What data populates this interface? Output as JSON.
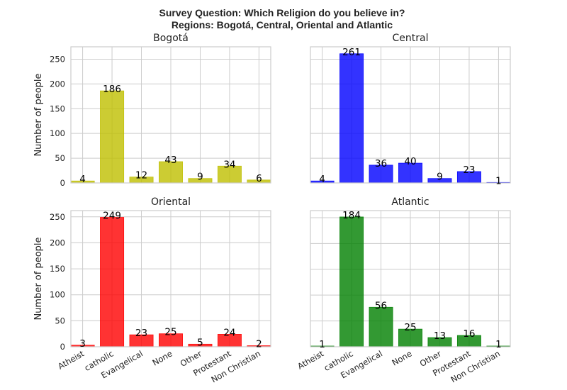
{
  "figure": {
    "title_line1": "Survey Question: Which Religion do you believe in?",
    "title_line2": "Regions: Bogotá, Central, Oriental and Atlantic"
  },
  "chart_data": [
    {
      "type": "bar",
      "title": "Bogotá",
      "ylabel": "Number of people",
      "categories": [
        "Atheist",
        "catholic",
        "Evangelical",
        "None",
        "Other",
        "Protestant",
        "Non Christian"
      ],
      "values": [
        4,
        186,
        12,
        43,
        9,
        34,
        6
      ],
      "data_labels": [
        "4",
        "186",
        "12",
        "43",
        "9",
        "34",
        "6"
      ],
      "color": "#bfbf00",
      "ylim": [
        0,
        275
      ],
      "yticks": [
        0,
        50,
        100,
        150,
        200,
        250
      ],
      "show_yticks": true,
      "show_xticks": false
    },
    {
      "type": "bar",
      "title": "Central",
      "ylabel": "",
      "categories": [
        "Atheist",
        "catholic",
        "Evangelical",
        "None",
        "Other",
        "Protestant",
        "Non Christian"
      ],
      "values": [
        4,
        261,
        36,
        40,
        9,
        23,
        1
      ],
      "data_labels": [
        "4",
        "261",
        "36",
        "40",
        "9",
        "23",
        "1"
      ],
      "color": "#0000ff",
      "ylim": [
        0,
        275
      ],
      "yticks": [
        0,
        50,
        100,
        150,
        200,
        250
      ],
      "show_yticks": false,
      "show_xticks": false
    },
    {
      "type": "bar",
      "title": "Oriental",
      "ylabel": "Number of people",
      "categories": [
        "Atheist",
        "catholic",
        "Evangelical",
        "None",
        "Other",
        "Protestant",
        "Non Christian"
      ],
      "values": [
        3,
        249,
        23,
        25,
        5,
        24,
        2
      ],
      "data_labels": [
        "3",
        "249",
        "23",
        "25",
        "5",
        "24",
        "2"
      ],
      "color": "#ff0000",
      "ylim": [
        0,
        262
      ],
      "yticks": [
        0,
        50,
        100,
        150,
        200,
        250
      ],
      "show_yticks": true,
      "show_xticks": true
    },
    {
      "type": "bar",
      "title": "Atlantic",
      "ylabel": "",
      "categories": [
        "Atheist",
        "catholic",
        "Evangelical",
        "None",
        "Other",
        "Protestant",
        "Non Christian"
      ],
      "values": [
        1,
        184,
        56,
        25,
        13,
        16,
        1
      ],
      "data_labels": [
        "1",
        "184",
        "56",
        "25",
        "13",
        "16",
        "1"
      ],
      "color": "#008000",
      "ylim": [
        0,
        193
      ],
      "yticks": [
        0,
        36.6,
        73.2,
        109.8,
        146.4,
        183
      ],
      "show_yticks": false,
      "show_xticks": true
    }
  ]
}
